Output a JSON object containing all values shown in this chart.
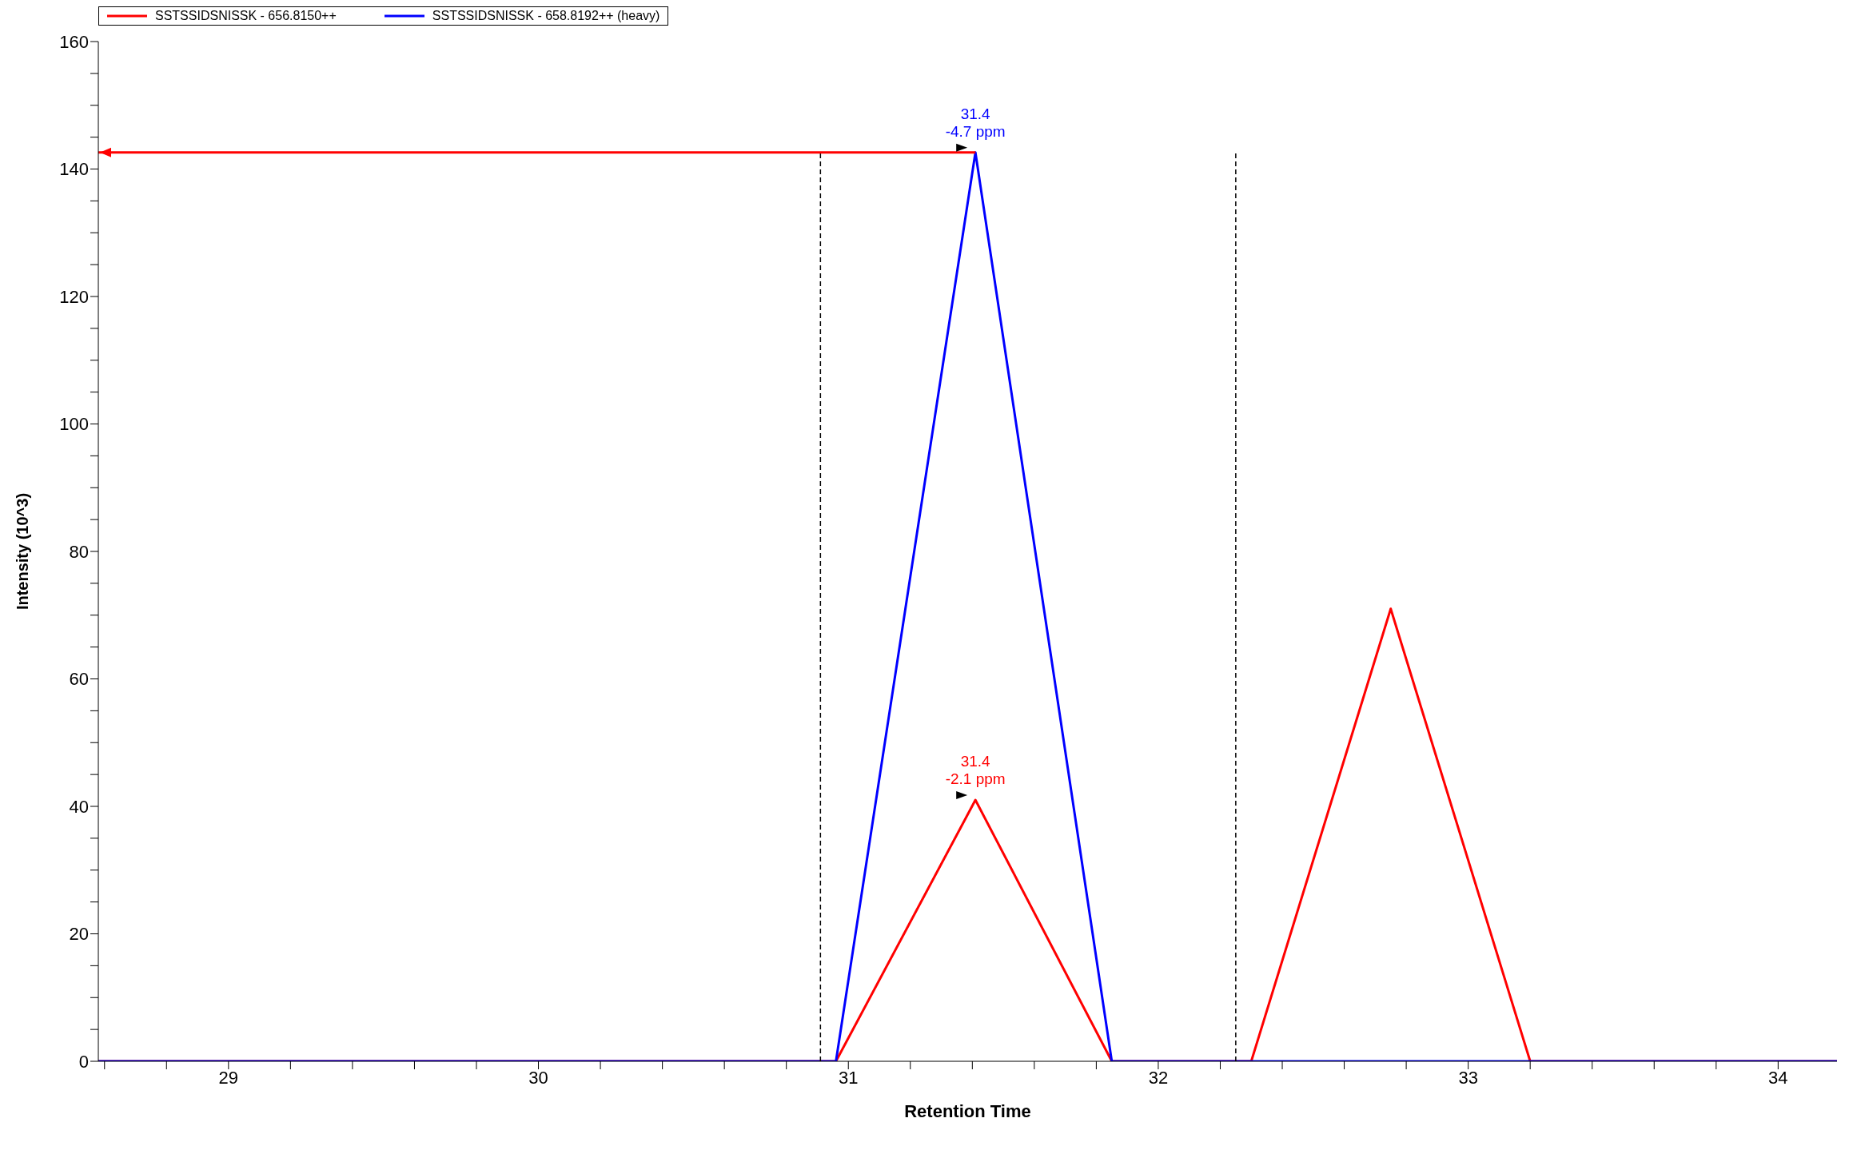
{
  "chart_data": {
    "type": "line",
    "xlabel": "Retention Time",
    "ylabel": "Intensity (10^3)",
    "x": [
      28.58,
      30.96,
      31.41,
      31.85,
      32.3,
      32.75,
      33.2,
      34.19
    ],
    "series": [
      {
        "name": "SSTSSIDSNISSK - 656.8150++",
        "color": "#ff0000",
        "values": [
          0,
          0,
          41,
          0,
          0,
          71,
          0,
          0
        ]
      },
      {
        "name": "SSTSSIDSNISSK - 658.8192++ (heavy)",
        "color": "#0000ff",
        "values": [
          0,
          0,
          142.6,
          0,
          0,
          0,
          0,
          0
        ]
      }
    ],
    "xlim": [
      28.58,
      34.19
    ],
    "xticks": [
      {
        "value": 28.6,
        "label": null
      },
      {
        "value": 28.8,
        "label": null
      },
      29,
      {
        "value": 29.2,
        "label": null
      },
      {
        "value": 29.4,
        "label": null
      },
      {
        "value": 29.6,
        "label": null
      },
      {
        "value": 29.8,
        "label": null
      },
      30,
      {
        "value": 30.2,
        "label": null
      },
      {
        "value": 30.4,
        "label": null
      },
      {
        "value": 30.6,
        "label": null
      },
      {
        "value": 30.8,
        "label": null
      },
      31,
      {
        "value": 31.2,
        "label": null
      },
      {
        "value": 31.4,
        "label": null
      },
      {
        "value": 31.6,
        "label": null
      },
      {
        "value": 31.8,
        "label": null
      },
      32,
      {
        "value": 32.2,
        "label": null
      },
      {
        "value": 32.4,
        "label": null
      },
      {
        "value": 32.6,
        "label": null
      },
      {
        "value": 32.8,
        "label": null
      },
      33,
      {
        "value": 33.2,
        "label": null
      },
      {
        "value": 33.4,
        "label": null
      },
      {
        "value": 33.6,
        "label": null
      },
      {
        "value": 33.8,
        "label": null
      },
      34
    ],
    "ylim": [
      0,
      160
    ],
    "yticks": [
      0,
      {
        "value": 5,
        "label": null
      },
      {
        "value": 10,
        "label": null
      },
      {
        "value": 15,
        "label": null
      },
      20,
      {
        "value": 25,
        "label": null
      },
      {
        "value": 30,
        "label": null
      },
      {
        "value": 35,
        "label": null
      },
      40,
      {
        "value": 45,
        "label": null
      },
      {
        "value": 50,
        "label": null
      },
      {
        "value": 55,
        "label": null
      },
      60,
      {
        "value": 65,
        "label": null
      },
      {
        "value": 70,
        "label": null
      },
      {
        "value": 75,
        "label": null
      },
      80,
      {
        "value": 85,
        "label": null
      },
      {
        "value": 90,
        "label": null
      },
      {
        "value": 95,
        "label": null
      },
      100,
      {
        "value": 105,
        "label": null
      },
      {
        "value": 110,
        "label": null
      },
      {
        "value": 115,
        "label": null
      },
      120,
      {
        "value": 125,
        "label": null
      },
      {
        "value": 130,
        "label": null
      },
      {
        "value": 135,
        "label": null
      },
      140,
      {
        "value": 145,
        "label": null
      },
      {
        "value": 150,
        "label": null
      },
      {
        "value": 155,
        "label": null
      },
      160
    ],
    "ref_lines": [
      {
        "axis": "x",
        "value": 30.91,
        "color": "#000000",
        "line_style": "dashed"
      },
      {
        "axis": "x",
        "value": 32.25,
        "color": "#000000",
        "line_style": "dashed"
      },
      {
        "axis": "y",
        "value": 142.6,
        "color": "#ff0000",
        "line_style": "solid"
      }
    ],
    "annotations": [
      {
        "text": "31.4\n-4.7 ppm",
        "x": 31.41,
        "y": 142.6
      },
      {
        "text": "31.4\n-2.1 ppm",
        "x": 31.41,
        "y": 41
      }
    ],
    "grid": false,
    "legend": "top left",
    "marker": "none",
    "line_style": "solid"
  }
}
